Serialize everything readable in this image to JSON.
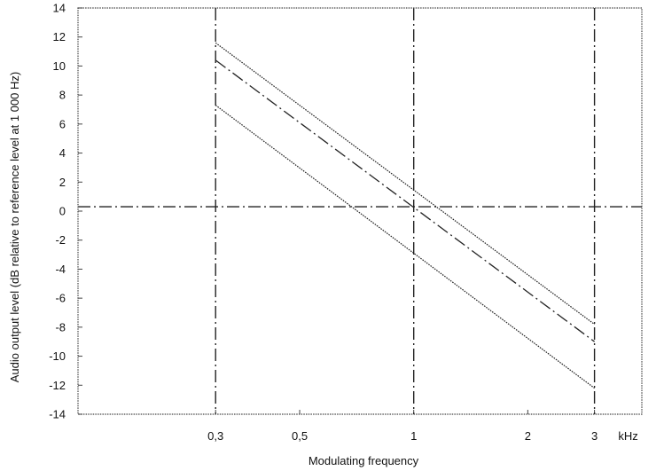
{
  "chart_data": {
    "type": "line",
    "xlabel": "Modulating frequency",
    "ylabel": "Audio output level (dB relative  to reference level at 1 000 Hz)",
    "x_unit": "kHz",
    "x_scale": "log",
    "xlim": [
      0.13,
      4.0
    ],
    "ylim": [
      -14,
      14
    ],
    "x_ticks": [
      {
        "value": 0.3,
        "label": "0,3"
      },
      {
        "value": 0.5,
        "label": "0,5"
      },
      {
        "value": 1,
        "label": "1"
      },
      {
        "value": 2,
        "label": "2"
      },
      {
        "value": 3,
        "label": "3"
      }
    ],
    "y_ticks": [
      {
        "value": 14,
        "label": "14"
      },
      {
        "value": 12,
        "label": "12"
      },
      {
        "value": 10,
        "label": "10"
      },
      {
        "value": 8,
        "label": "8"
      },
      {
        "value": 6,
        "label": "6"
      },
      {
        "value": 4,
        "label": "4"
      },
      {
        "value": 2,
        "label": "2"
      },
      {
        "value": 0,
        "label": "0"
      },
      {
        "value": -2,
        "label": "-2"
      },
      {
        "value": -4,
        "label": "-4"
      },
      {
        "value": -6,
        "label": "-6"
      },
      {
        "value": -8,
        "label": "-8"
      },
      {
        "value": -10,
        "label": "-10"
      },
      {
        "value": -12,
        "label": "-12"
      },
      {
        "value": -14,
        "label": "-14"
      }
    ],
    "series": [
      {
        "style": "dotted",
        "x": [
          0.3,
          3
        ],
        "y": [
          11.6,
          -7.8
        ]
      },
      {
        "style": "dash-dot",
        "x": [
          0.3,
          3
        ],
        "y": [
          10.4,
          -9.0
        ]
      },
      {
        "style": "dotted",
        "x": [
          0.3,
          3
        ],
        "y": [
          7.3,
          -12.2
        ]
      }
    ],
    "reference_lines": [
      {
        "orientation": "vertical",
        "x": 0.3,
        "style": "dash-dot"
      },
      {
        "orientation": "vertical",
        "x": 1,
        "style": "dash-dot"
      },
      {
        "orientation": "vertical",
        "x": 3,
        "style": "dash-dot"
      },
      {
        "orientation": "horizontal",
        "y": 0.3,
        "style": "dash-dot"
      }
    ],
    "grid": false,
    "legend": "none",
    "colors": {
      "line": "#222222",
      "frame": "#444444",
      "background": "#ffffff"
    }
  }
}
